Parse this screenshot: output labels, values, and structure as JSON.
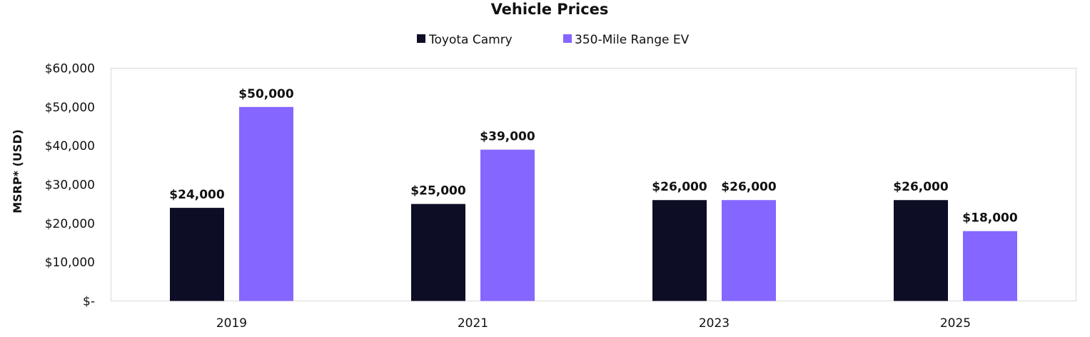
{
  "chart_data": {
    "type": "bar",
    "title": "Vehicle Prices",
    "ylabel": "MSRP* (USD)",
    "xlabel": "",
    "categories": [
      "2019",
      "2021",
      "2023",
      "2025"
    ],
    "ylim": [
      0,
      60000
    ],
    "y_ticks": [
      0,
      10000,
      20000,
      30000,
      40000,
      50000,
      60000
    ],
    "y_tick_labels": [
      "$-",
      "$10,000",
      "$20,000",
      "$30,000",
      "$40,000",
      "$50,000",
      "$60,000"
    ],
    "grid": false,
    "legend_position": "top",
    "series": [
      {
        "name": "Toyota Camry",
        "color": "#0d0d26",
        "values": [
          24000,
          25000,
          26000,
          26000
        ],
        "labels": [
          "$24,000",
          "$25,000",
          "$26,000",
          "$26,000"
        ]
      },
      {
        "name": "350-Mile Range EV",
        "color": "#8566ff",
        "values": [
          50000,
          39000,
          26000,
          18000
        ],
        "labels": [
          "$50,000",
          "$39,000",
          "$26,000",
          "$18,000"
        ]
      }
    ]
  }
}
